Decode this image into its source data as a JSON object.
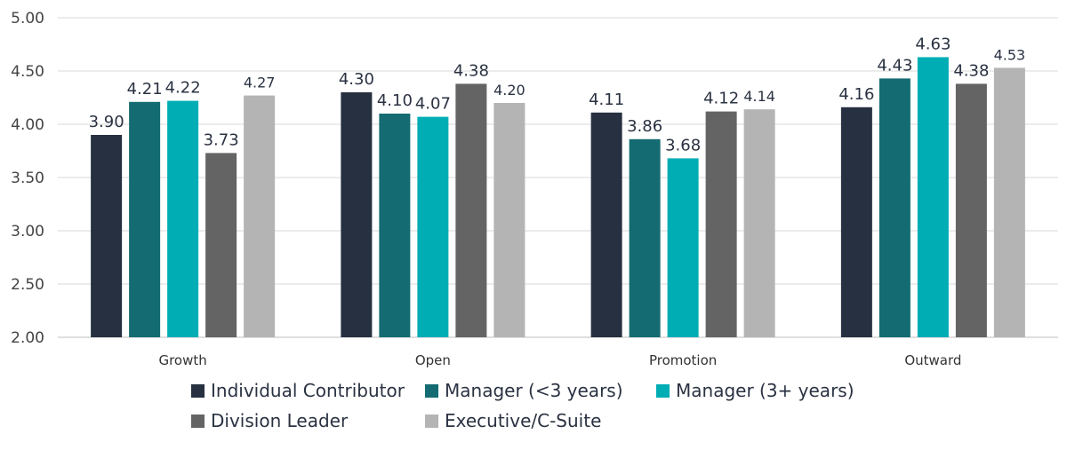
{
  "chart_data": {
    "type": "bar",
    "categories": [
      "Growth",
      "Open",
      "Promotion",
      "Outward"
    ],
    "series": [
      {
        "name": "Individual Contributor",
        "color": "#263040",
        "values": [
          3.9,
          4.3,
          4.11,
          4.16
        ]
      },
      {
        "name": "Manager (<3 years)",
        "color": "#146c72",
        "values": [
          4.21,
          4.1,
          3.86,
          4.43
        ]
      },
      {
        "name": "Manager (3+ years)",
        "color": "#00adb5",
        "values": [
          4.22,
          4.07,
          3.68,
          4.63
        ]
      },
      {
        "name": "Division Leader",
        "color": "#646464",
        "values": [
          3.73,
          4.38,
          4.12,
          4.38
        ]
      },
      {
        "name": "Executive/C-Suite",
        "color": "#b4b4b4",
        "values": [
          4.27,
          4.2,
          4.14,
          4.53
        ]
      }
    ],
    "yticks": [
      "2.00",
      "2.50",
      "3.00",
      "3.50",
      "4.00",
      "4.50",
      "5.00"
    ],
    "ylim": [
      2,
      5
    ],
    "grid": true,
    "legend": "bottom",
    "title": "",
    "xlabel": "",
    "ylabel": ""
  }
}
